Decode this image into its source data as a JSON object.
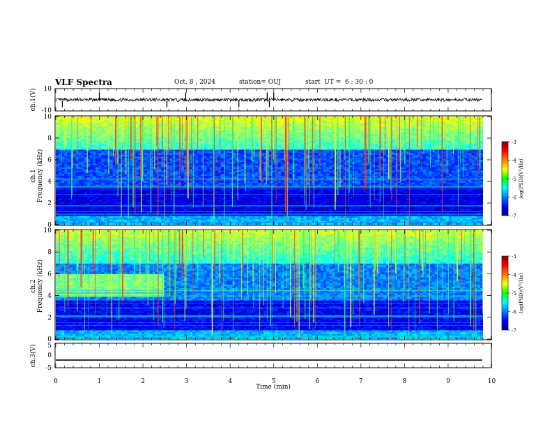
{
  "header": {
    "title": "VLF Spectra",
    "date": "Oct. 8 , 2024",
    "station": "station= OUJ",
    "start": "start  UT =  6 : 30 : 0"
  },
  "chart_data": [
    {
      "type": "line",
      "id": "ch1-waveform",
      "ylabel": "ch.1(V)",
      "ylim": [
        -10,
        10
      ],
      "y_tick_labels": [
        "10",
        "-10"
      ],
      "xlim": [
        0,
        10
      ],
      "baseline_v": 0,
      "noise_band_v": [
        -1.5,
        1.5
      ],
      "spikes_min": [
        0.15,
        1.0,
        2.55,
        2.98,
        4.2,
        4.85,
        4.9,
        5.0
      ]
    },
    {
      "type": "heatmap",
      "id": "ch1-spectrogram",
      "ylabel": "ch.1\nFrequency (kHz)",
      "ylim_khz": [
        0,
        10
      ],
      "y_tick_labels": [
        "0",
        "2",
        "4",
        "6",
        "8",
        "10"
      ],
      "xlim_min": [
        0,
        10
      ],
      "colorbar": {
        "label": "log(PSD)(V²/Hz)",
        "range": [
          -7,
          -3
        ],
        "tick_labels": [
          "-7",
          "-6",
          "-5",
          "-4",
          "-3"
        ]
      }
    },
    {
      "type": "heatmap",
      "id": "ch2-spectrogram",
      "ylabel": "ch.2\nFrequency (kHz)",
      "ylim_khz": [
        0,
        10
      ],
      "y_tick_labels": [
        "0",
        "2",
        "4",
        "6",
        "8",
        "10"
      ],
      "xlim_min": [
        0,
        10
      ],
      "colorbar": {
        "label": "log(PSD)(V²/Hz)",
        "range": [
          -7,
          -3
        ],
        "tick_labels": [
          "-7",
          "-6",
          "-5",
          "-4",
          "-3"
        ]
      }
    },
    {
      "type": "line",
      "id": "ch3-waveform",
      "ylabel": "ch.3(V)",
      "ylim": [
        -5,
        5
      ],
      "y_tick_labels": [
        "5",
        "0",
        "-5"
      ],
      "xlim": [
        0,
        10
      ],
      "constant_value_v": -2.0
    }
  ],
  "x_axis": {
    "xlabel": "Time (min)",
    "range": [
      0,
      10
    ],
    "tick_labels": [
      "0",
      "1",
      "2",
      "3",
      "4",
      "5",
      "6",
      "7",
      "8",
      "9",
      "10"
    ]
  }
}
